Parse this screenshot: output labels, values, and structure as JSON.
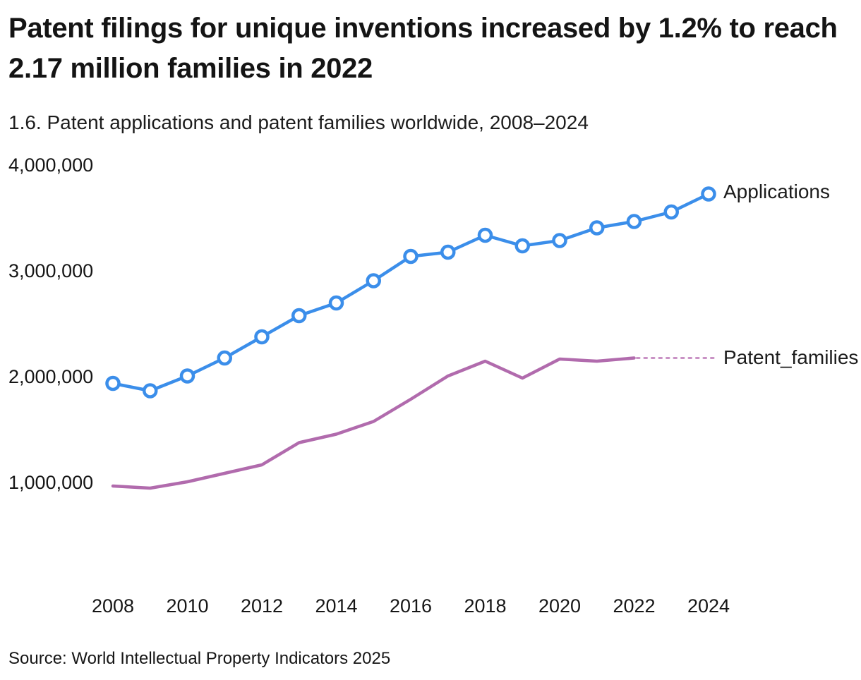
{
  "header": {
    "title": "Patent filings for unique inventions increased by 1.2% to reach 2.17 million families in 2022",
    "subtitle": "1.6. Patent applications and patent families worldwide, 2008–2024"
  },
  "footer": {
    "source": "Source: World Intellectual Property Indicators 2025"
  },
  "chart_data": {
    "type": "line",
    "title": "1.6. Patent applications and patent families worldwide, 2008–2024",
    "xlabel": "",
    "ylabel": "",
    "grid": false,
    "legend_position": "line-end-labels",
    "x_range": [
      2008,
      2024
    ],
    "x_ticks": [
      2008,
      2010,
      2012,
      2014,
      2016,
      2018,
      2020,
      2022,
      2024
    ],
    "y_axis_top": 4000000,
    "y_tick_values": [
      4000000,
      3000000,
      2000000,
      1000000
    ],
    "y_tick_labels": [
      "4,000,000",
      "3,000,000",
      "2,000,000",
      "1,000,000"
    ],
    "series": [
      {
        "name": "Applications",
        "color": "#3B8EEA",
        "marker": "circle",
        "years": [
          2008,
          2009,
          2010,
          2011,
          2012,
          2013,
          2014,
          2015,
          2016,
          2017,
          2018,
          2019,
          2020,
          2021,
          2022,
          2023,
          2024
        ],
        "values": [
          1930000,
          1860000,
          2000000,
          2170000,
          2370000,
          2570000,
          2690000,
          2900000,
          3130000,
          3170000,
          3330000,
          3230000,
          3280000,
          3400000,
          3460000,
          3550000,
          3720000
        ]
      },
      {
        "name": "Patent_families",
        "color": "#B16BAD",
        "marker": "none",
        "dotted_extension": true,
        "dotted_color": "#C992C5",
        "years": [
          2008,
          2009,
          2010,
          2011,
          2012,
          2013,
          2014,
          2015,
          2016,
          2017,
          2018,
          2019,
          2020,
          2021,
          2022
        ],
        "values": [
          960000,
          940000,
          1000000,
          1080000,
          1160000,
          1370000,
          1450000,
          1570000,
          1780000,
          2000000,
          2140000,
          1980000,
          2160000,
          2140000,
          2170000
        ]
      }
    ]
  }
}
